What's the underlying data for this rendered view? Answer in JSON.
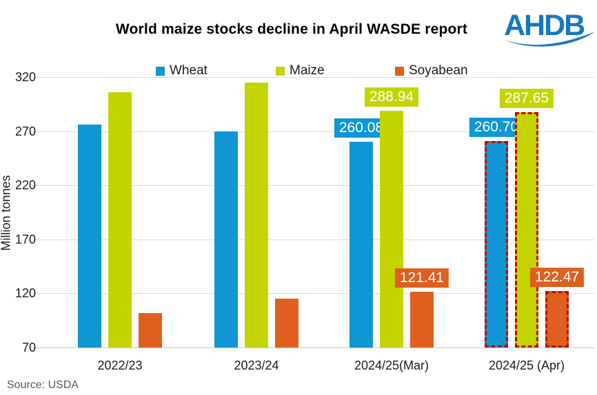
{
  "header": {
    "logo_text": "AHDB",
    "logo_color": "#1878be"
  },
  "chart_data": {
    "type": "bar",
    "title": "World maize stocks decline in April WASDE report",
    "ylabel": "Million tonnes",
    "source": "Source: USDA",
    "categories": [
      "2022/23",
      "2023/24",
      "2024/25(Mar)",
      "2024/25 (Apr)"
    ],
    "y_ticks": [
      70,
      120,
      170,
      220,
      270,
      320
    ],
    "ylim": [
      70,
      320
    ],
    "grid": true,
    "legend_position": "top",
    "series": [
      {
        "name": "Wheat",
        "color": "#0f96d4",
        "values": [
          276.0,
          269.8,
          260.08,
          260.7
        ],
        "data_labels": [
          null,
          null,
          "260.08",
          "260.70"
        ]
      },
      {
        "name": "Maize",
        "color": "#c4d400",
        "values": [
          305.8,
          314.9,
          288.94,
          287.65
        ],
        "data_labels": [
          null,
          null,
          "288.94",
          "287.65"
        ]
      },
      {
        "name": "Soyabean",
        "color": "#de5f1e",
        "values": [
          101.9,
          115.3,
          121.41,
          122.47
        ],
        "data_labels": [
          null,
          null,
          "121.41",
          "122.47"
        ]
      }
    ],
    "highlight": {
      "category": "2024/25 (Apr)",
      "category_index": 3,
      "style": "dashed-border",
      "border_color": "#c00000"
    }
  }
}
